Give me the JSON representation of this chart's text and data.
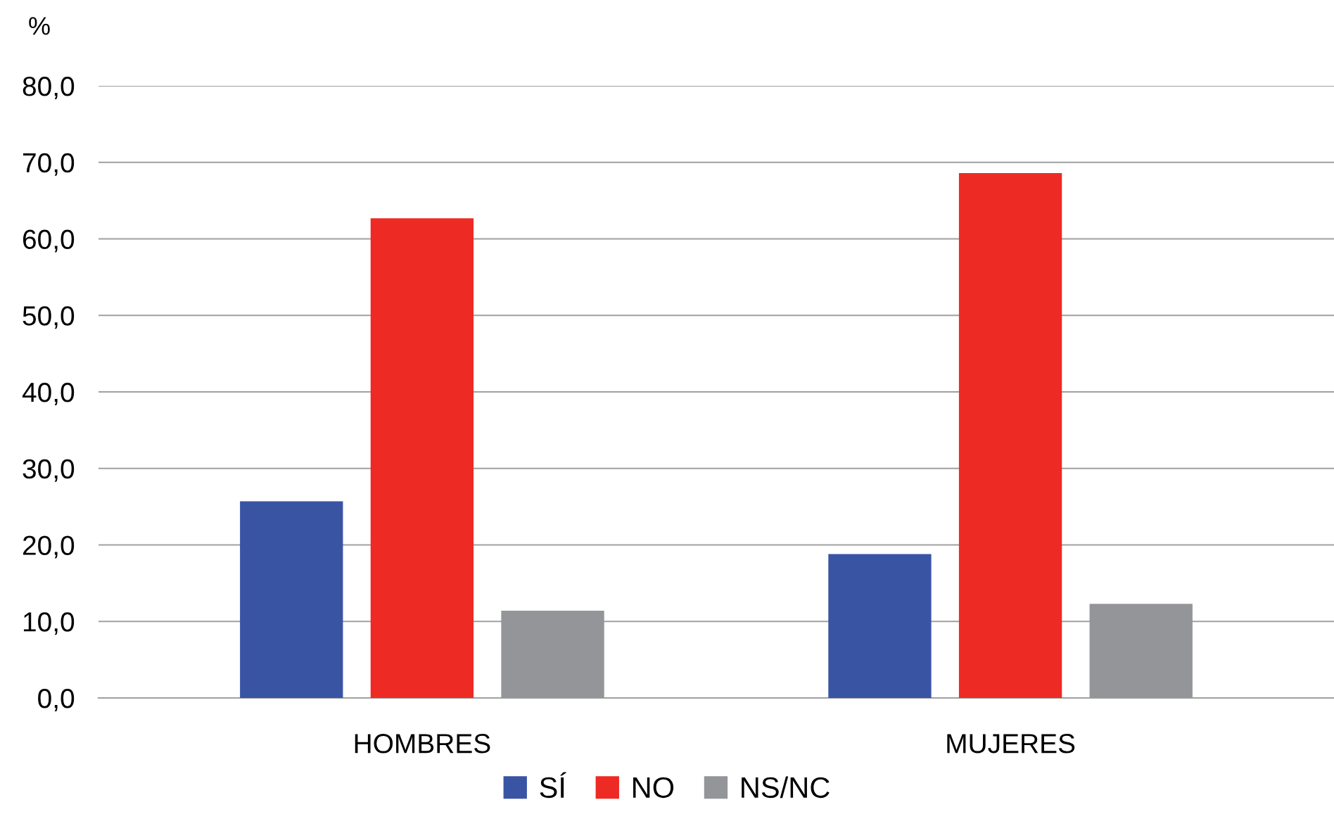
{
  "chart_data": {
    "type": "bar",
    "ylabel": "%",
    "categories": [
      "HOMBRES",
      "MUJERES"
    ],
    "series": [
      {
        "name": "SÍ",
        "color": "#3a54a4",
        "values": [
          25.7,
          18.8
        ]
      },
      {
        "name": "NO",
        "color": "#ee2a24",
        "values": [
          62.7,
          68.6
        ]
      },
      {
        "name": "NS/NC",
        "color": "#939598",
        "values": [
          11.4,
          12.3
        ]
      }
    ],
    "ylim": [
      0,
      80
    ],
    "yticks": [
      {
        "value": 0,
        "label": "0,0"
      },
      {
        "value": 10,
        "label": "10,0"
      },
      {
        "value": 20,
        "label": "20,0"
      },
      {
        "value": 30,
        "label": "30,0"
      },
      {
        "value": 40,
        "label": "40,0"
      },
      {
        "value": 50,
        "label": "50,0"
      },
      {
        "value": 60,
        "label": "60,0"
      },
      {
        "value": 70,
        "label": "70,0"
      },
      {
        "value": 80,
        "label": "80,0"
      }
    ],
    "grid": "y",
    "legend": "bottom"
  }
}
